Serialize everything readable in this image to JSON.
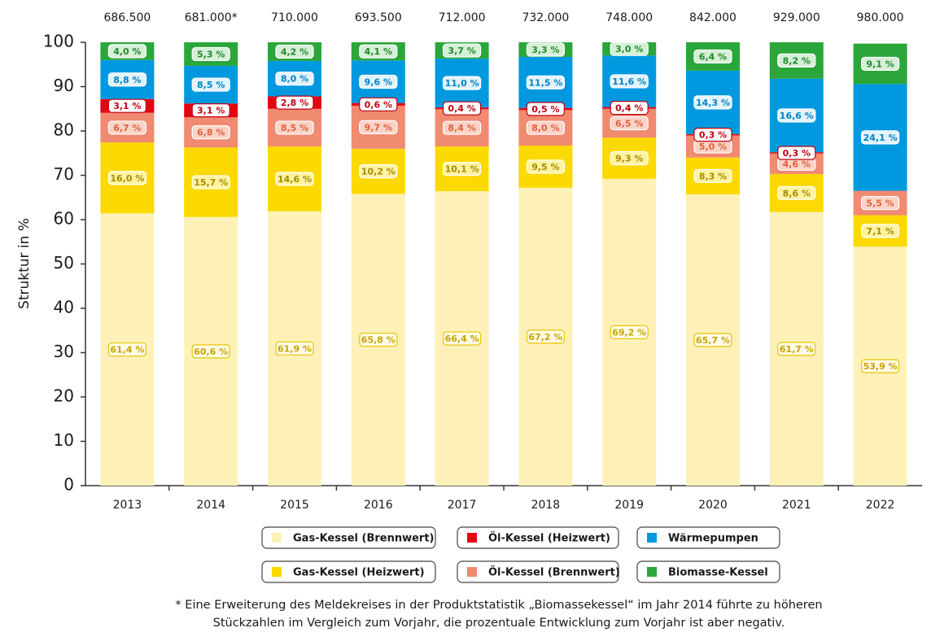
{
  "chart_data": {
    "type": "stacked_bar",
    "y_label": "Struktur in %",
    "categories": [
      "2013",
      "2014",
      "2015",
      "2016",
      "2017",
      "2018",
      "2019",
      "2020",
      "2021",
      "2022"
    ],
    "totals": {
      "values": [
        686500,
        681000,
        710000,
        693500,
        712000,
        732000,
        748000,
        842000,
        929000,
        980000
      ],
      "value_labels": [
        "686.500",
        "681.000*",
        "710.000",
        "693.500",
        "712.000",
        "732.000",
        "748.000",
        "842.000",
        "929.000",
        "980.000"
      ]
    },
    "ylim": [
      0,
      100
    ],
    "yticks": [
      0,
      10,
      20,
      30,
      40,
      50,
      60,
      70,
      80,
      90,
      100
    ],
    "series": [
      {
        "name": "Gas-Kessel (Brennwert)",
        "color": "#fdf1b8",
        "values": [
          61.4,
          60.6,
          61.9,
          65.8,
          66.4,
          67.2,
          69.2,
          65.7,
          61.7,
          53.9
        ],
        "value_labels": [
          "61,4 %",
          "60,6 %",
          "61,9 %",
          "65,8 %",
          "66,4 %",
          "67,2 %",
          "69,2 %",
          "65,7 %",
          "61,7 %",
          "53,9 %"
        ]
      },
      {
        "name": "Gas-Kessel (Heizwert)",
        "color": "#fcd900",
        "values": [
          16.0,
          15.7,
          14.6,
          10.2,
          10.1,
          9.5,
          9.3,
          8.3,
          8.6,
          7.1
        ],
        "value_labels": [
          "16,0 %",
          "15,7 %",
          "14,6 %",
          "10,2 %",
          "10,1 %",
          "9,5 %",
          "9,3 %",
          "8,3 %",
          "8,6 %",
          "7,1 %"
        ]
      },
      {
        "name": "Öl-Kessel (Brennwert)",
        "color": "#f08a70",
        "values": [
          6.7,
          6.8,
          8.5,
          9.7,
          8.4,
          8.0,
          6.5,
          5.0,
          4.6,
          5.5
        ],
        "value_labels": [
          "6,7 %",
          "6,8 %",
          "8,5 %",
          "9,7 %",
          "8,4 %",
          "8,0 %",
          "6,5 %",
          "5,0 %",
          "4,6 %",
          "5,5 %"
        ]
      },
      {
        "name": "Öl-Kessel (Heizwert)",
        "color": "#e30613",
        "values": [
          3.1,
          3.1,
          2.8,
          0.6,
          0.4,
          0.5,
          0.4,
          0.3,
          0.3,
          null
        ],
        "value_labels": [
          "3,1 %",
          "3,1 %",
          "2,8 %",
          "0,6 %",
          "0,4 %",
          "0,5 %",
          "0,4 %",
          "0,3 %",
          "0,3 %",
          null
        ]
      },
      {
        "name": "Wärmepumpen",
        "color": "#0099e0",
        "values": [
          8.8,
          8.5,
          8.0,
          9.6,
          11.0,
          11.5,
          11.6,
          14.3,
          16.6,
          24.1
        ],
        "value_labels": [
          "8,8 %",
          "8,5 %",
          "8,0 %",
          "9,6 %",
          "11,0 %",
          "11,5 %",
          "11,6 %",
          "14,3 %",
          "16,6 %",
          "24,1 %"
        ]
      },
      {
        "name": "Biomasse-Kessel",
        "color": "#2aa63a",
        "values": [
          4.0,
          5.3,
          4.2,
          4.1,
          3.7,
          3.3,
          3.0,
          6.4,
          8.2,
          9.1
        ],
        "value_labels": [
          "4,0 %",
          "5,3 %",
          "4,2 %",
          "4,1 %",
          "3,7 %",
          "3,3 %",
          "3,0 %",
          "6,4 %",
          "8,2 %",
          "9,1 %"
        ]
      }
    ],
    "footnote": [
      "* Eine Erweiterung des Meldekreises in der Produktstatistik „Biomassekessel“ im Jahr 2014 führte zu höheren",
      "Stückzahlen im Vergleich zum Vorjahr, die prozentuale Entwicklung zum Vorjahr ist aber negativ."
    ]
  }
}
